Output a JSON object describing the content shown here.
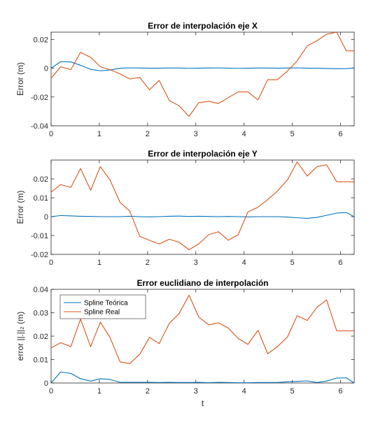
{
  "colors": {
    "series_teorica": "#0072BD",
    "series_real": "#D95319",
    "axes": "#262626",
    "background": "#ffffff"
  },
  "chart_data": [
    {
      "type": "line",
      "title": "Error de interpolación eje X",
      "xlabel": "",
      "ylabel": "Error (m)",
      "xlim": [
        0,
        6.2832
      ],
      "ylim": [
        -0.04,
        0.025
      ],
      "xticks": [
        0,
        1,
        2,
        3,
        4,
        5,
        6
      ],
      "yticks": [
        -0.04,
        -0.02,
        0,
        0.02
      ],
      "ytick_labels": [
        "-0.04",
        "-0.02",
        "0",
        "0.02"
      ],
      "grid": false,
      "series": [
        {
          "name": "Spline Teórica",
          "x": [
            0,
            0.2,
            0.41,
            0.61,
            0.82,
            1.02,
            1.22,
            1.43,
            1.63,
            1.84,
            2.04,
            2.24,
            2.45,
            2.65,
            2.86,
            3.06,
            3.27,
            3.47,
            3.67,
            3.88,
            4.08,
            4.29,
            4.49,
            4.69,
            4.9,
            5.1,
            5.31,
            5.51,
            5.71,
            5.92,
            6.12,
            6.28
          ],
          "y": [
            0,
            0.0045,
            0.0043,
            0.002,
            -0.0008,
            -0.0018,
            -0.0013,
            0,
            0.0002,
            0.0001,
            0,
            0,
            0.0001,
            0.0001,
            -0.0001,
            0,
            0.0001,
            0.0002,
            0,
            -0.0001,
            0,
            0.0001,
            0.0001,
            0,
            0.0001,
            0.0002,
            0,
            0,
            -0.0002,
            -0.0004,
            -0.0003,
            0.0002
          ]
        },
        {
          "name": "Spline Real",
          "x": [
            0,
            0.2,
            0.41,
            0.61,
            0.82,
            1.02,
            1.22,
            1.43,
            1.63,
            1.84,
            2.04,
            2.24,
            2.45,
            2.65,
            2.86,
            3.06,
            3.27,
            3.47,
            3.67,
            3.88,
            4.08,
            4.29,
            4.49,
            4.69,
            4.9,
            5.1,
            5.31,
            5.51,
            5.71,
            5.92,
            6.12,
            6.28
          ],
          "y": [
            -0.007,
            0.001,
            -0.001,
            0.011,
            0.0075,
            0.001,
            -0.001,
            -0.004,
            -0.0075,
            -0.0065,
            -0.015,
            -0.0085,
            -0.0225,
            -0.026,
            -0.0335,
            -0.024,
            -0.023,
            -0.0245,
            -0.0205,
            -0.0165,
            -0.0165,
            -0.022,
            -0.008,
            -0.008,
            -0.002,
            0.005,
            0.0155,
            0.019,
            0.0235,
            0.025,
            0.012,
            0.012
          ]
        }
      ]
    },
    {
      "type": "line",
      "title": "Error de interpolación eje Y",
      "xlabel": "",
      "ylabel": "Error (m)",
      "xlim": [
        0,
        6.2832
      ],
      "ylim": [
        -0.02,
        0.03
      ],
      "xticks": [
        0,
        1,
        2,
        3,
        4,
        5,
        6
      ],
      "yticks": [
        -0.02,
        -0.01,
        0,
        0.01,
        0.02
      ],
      "ytick_labels": [
        "-0.02",
        "-0.01",
        "0",
        "0.01",
        "0.02"
      ],
      "grid": false,
      "series": [
        {
          "name": "Spline Teórica",
          "x": [
            0,
            0.2,
            0.41,
            0.61,
            0.82,
            1.02,
            1.22,
            1.43,
            1.63,
            1.84,
            2.04,
            2.24,
            2.45,
            2.65,
            2.86,
            3.06,
            3.27,
            3.47,
            3.67,
            3.88,
            4.08,
            4.29,
            4.49,
            4.69,
            4.9,
            5.1,
            5.31,
            5.51,
            5.71,
            5.92,
            6.12,
            6.28
          ],
          "y": [
            0,
            0.0006,
            0.0004,
            0.0002,
            0.0001,
            0,
            0,
            0,
            0.0002,
            0,
            -0.0001,
            0,
            0.0002,
            0.0003,
            0.0001,
            0.0002,
            0.0001,
            0,
            0.0001,
            0,
            -0.0001,
            0,
            0,
            0,
            -0.0002,
            -0.0006,
            -0.0009,
            -0.0004,
            0.0007,
            0.0019,
            0.0022,
            0
          ]
        },
        {
          "name": "Spline Real",
          "x": [
            0,
            0.2,
            0.41,
            0.61,
            0.82,
            1.02,
            1.22,
            1.43,
            1.63,
            1.84,
            2.04,
            2.24,
            2.45,
            2.65,
            2.86,
            3.06,
            3.27,
            3.47,
            3.67,
            3.88,
            4.08,
            4.29,
            4.49,
            4.69,
            4.9,
            5.1,
            5.31,
            5.51,
            5.71,
            5.92,
            6.12,
            6.28
          ],
          "y": [
            0.013,
            0.017,
            0.0155,
            0.0255,
            0.014,
            0.0265,
            0.0195,
            0.0075,
            0.003,
            -0.0105,
            -0.0125,
            -0.0145,
            -0.012,
            -0.0135,
            -0.0175,
            -0.0145,
            -0.0095,
            -0.008,
            -0.0125,
            -0.0095,
            0.0025,
            0.005,
            0.009,
            0.0135,
            0.0195,
            0.029,
            0.0215,
            0.0265,
            0.0275,
            0.0185,
            0.0185,
            0.0185
          ]
        }
      ]
    },
    {
      "type": "line",
      "title": "Error euclidiano de interpolación",
      "xlabel": "t",
      "ylabel": "error ||.||₂ (m)",
      "xlim": [
        0,
        6.2832
      ],
      "ylim": [
        0,
        0.04
      ],
      "xticks": [
        0,
        1,
        2,
        3,
        4,
        5,
        6
      ],
      "yticks": [
        0,
        0.01,
        0.02,
        0.03,
        0.04
      ],
      "ytick_labels": [
        "0",
        "0.01",
        "0.02",
        "0.03",
        "0.04"
      ],
      "grid": false,
      "legend": {
        "placement": "top-left",
        "entries": [
          "Spline Teórica",
          "Spline Real"
        ]
      },
      "series": [
        {
          "name": "Spline Teórica",
          "x": [
            0,
            0.2,
            0.41,
            0.61,
            0.82,
            1.02,
            1.22,
            1.43,
            1.63,
            1.84,
            2.04,
            2.24,
            2.45,
            2.65,
            2.86,
            3.06,
            3.27,
            3.47,
            3.67,
            3.88,
            4.08,
            4.29,
            4.49,
            4.69,
            4.9,
            5.1,
            5.31,
            5.51,
            5.71,
            5.92,
            6.12,
            6.28
          ],
          "y": [
            0,
            0.0047,
            0.0041,
            0.0018,
            0.0008,
            0.0018,
            0.0015,
            0.0003,
            0.0003,
            0.0003,
            0.0003,
            0.0002,
            0.0003,
            0.0002,
            0.0002,
            0.0003,
            0.0001,
            0.0003,
            0.0002,
            0.0001,
            0.0001,
            0.0002,
            0.0002,
            0.0002,
            0.0005,
            0.0007,
            0.0009,
            0.0002,
            0.0008,
            0.0021,
            0.0022,
            0
          ]
        },
        {
          "name": "Spline Real",
          "x": [
            0,
            0.2,
            0.41,
            0.61,
            0.82,
            1.02,
            1.22,
            1.43,
            1.63,
            1.84,
            2.04,
            2.24,
            2.45,
            2.65,
            2.86,
            3.06,
            3.27,
            3.47,
            3.67,
            3.88,
            4.08,
            4.29,
            4.49,
            4.69,
            4.9,
            5.1,
            5.31,
            5.51,
            5.71,
            5.92,
            6.12,
            6.28
          ],
          "y": [
            0.015,
            0.0172,
            0.0155,
            0.0273,
            0.0155,
            0.026,
            0.0195,
            0.009,
            0.0083,
            0.0123,
            0.0195,
            0.0168,
            0.0255,
            0.0295,
            0.0375,
            0.0282,
            0.0248,
            0.0257,
            0.0235,
            0.019,
            0.0165,
            0.0225,
            0.0125,
            0.0155,
            0.0197,
            0.0287,
            0.0267,
            0.0323,
            0.0355,
            0.0223,
            0.0223,
            0.0223
          ]
        }
      ]
    }
  ]
}
